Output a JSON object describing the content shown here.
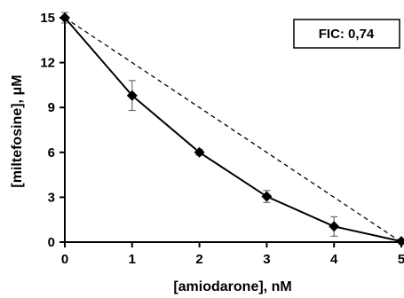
{
  "chart_data": {
    "type": "line",
    "xlabel": "[amiodarone], nM",
    "ylabel": "[miltefosine], μM",
    "annotation": "FIC: 0,74",
    "xlim": [
      0,
      5
    ],
    "ylim": [
      0,
      15
    ],
    "xticks": [
      "0",
      "1",
      "2",
      "3",
      "4",
      "5"
    ],
    "yticks": [
      "0",
      "3",
      "6",
      "9",
      "12",
      "15"
    ],
    "grid": false,
    "series": [
      {
        "style": "solid-with-diamond-markers",
        "x": [
          0,
          1,
          2,
          3,
          4,
          5
        ],
        "y": [
          15,
          9.8,
          6,
          3.05,
          1.05,
          0.05
        ],
        "error": [
          0.35,
          1.0,
          0.2,
          0.4,
          0.65,
          0.1
        ]
      },
      {
        "style": "dashed-additivity-line",
        "x": [
          0,
          5
        ],
        "y": [
          15,
          0
        ]
      }
    ]
  }
}
